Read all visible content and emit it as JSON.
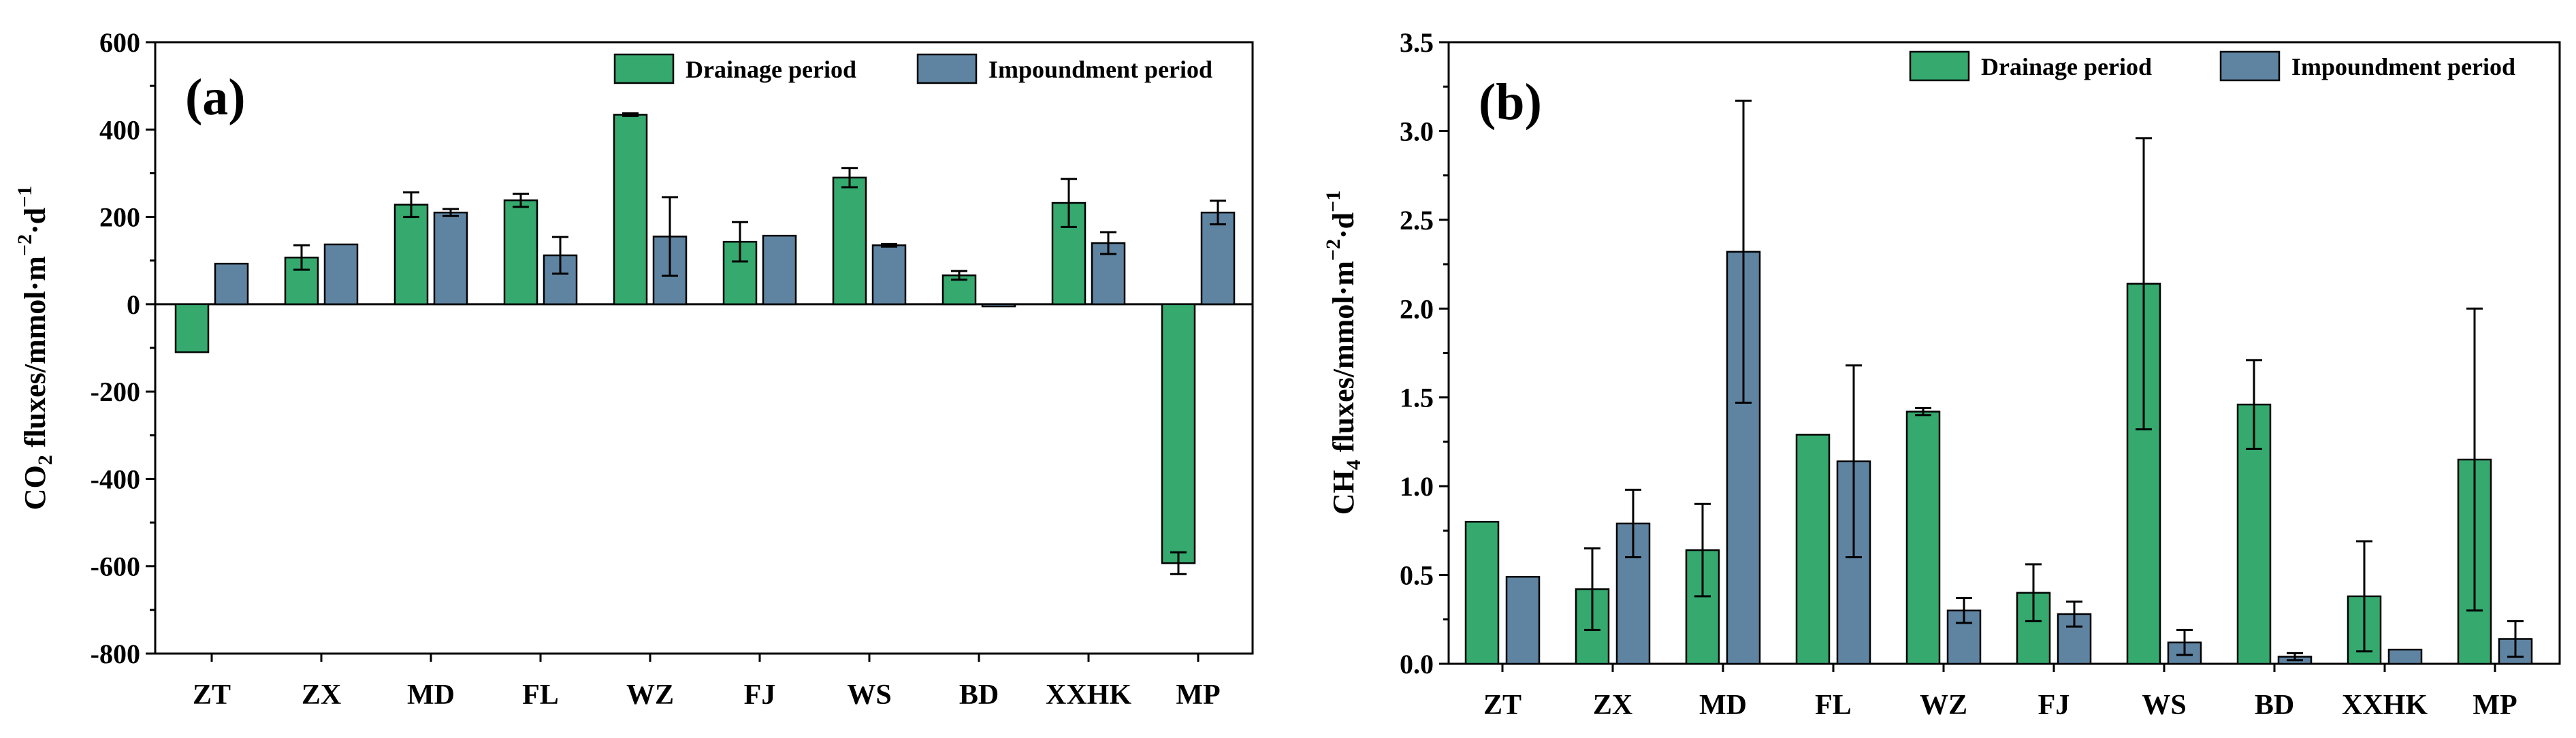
{
  "colors": {
    "drainage": "#35a96e",
    "impoundment": "#5f84a2"
  },
  "chart_data": [
    {
      "type": "bar",
      "panel_label": "(a)",
      "categories": [
        "ZT",
        "ZX",
        "MD",
        "FL",
        "WZ",
        "FJ",
        "WS",
        "BD",
        "XXHK",
        "MP"
      ],
      "ylabel_main": "CO",
      "ylabel_sub": "2",
      "ylabel_rest": " fluxes/mmol·m",
      "ylabel_exp1": "−2",
      "ylabel_mid": "·d",
      "ylabel_exp2": "−1",
      "ylim": [
        -800,
        600
      ],
      "yticks": [
        -800,
        -600,
        -400,
        -200,
        0,
        200,
        400,
        600
      ],
      "legend_position": "top-right",
      "series": [
        {
          "name": "Drainage period",
          "color_key": "drainage",
          "values": [
            -110,
            107,
            228,
            238,
            434,
            143,
            290,
            66,
            232,
            -593
          ],
          "errors": [
            0,
            28,
            28,
            15,
            3,
            45,
            22,
            10,
            55,
            25
          ]
        },
        {
          "name": "Impoundment period",
          "color_key": "impoundment",
          "values": [
            93,
            137,
            210,
            112,
            155,
            157,
            135,
            -5,
            140,
            210
          ],
          "errors": [
            0,
            0,
            8,
            42,
            90,
            0,
            3,
            0,
            25,
            27
          ]
        }
      ]
    },
    {
      "type": "bar",
      "panel_label": "(b)",
      "categories": [
        "ZT",
        "ZX",
        "MD",
        "FL",
        "WZ",
        "FJ",
        "WS",
        "BD",
        "XXHK",
        "MP"
      ],
      "ylabel_main": "CH",
      "ylabel_sub": "4",
      "ylabel_rest": " fluxes/mmol·m",
      "ylabel_exp1": "−2",
      "ylabel_mid": "·d",
      "ylabel_exp2": "−1",
      "ylim": [
        0,
        3.5
      ],
      "yticks": [
        "0.0",
        "0.5",
        "1.0",
        "1.5",
        "2.0",
        "2.5",
        "3.0",
        "3.5"
      ],
      "legend_position": "top-right",
      "series": [
        {
          "name": "Drainage period",
          "color_key": "drainage",
          "values": [
            0.8,
            0.42,
            0.64,
            1.29,
            1.42,
            0.4,
            2.14,
            1.46,
            0.38,
            1.15
          ],
          "errors": [
            0,
            0.23,
            0.26,
            0,
            0.02,
            0.16,
            0.82,
            0.25,
            0.31,
            0.85
          ]
        },
        {
          "name": "Impoundment period",
          "color_key": "impoundment",
          "values": [
            0.49,
            0.79,
            2.32,
            1.14,
            0.3,
            0.28,
            0.12,
            0.04,
            0.08,
            0.14
          ],
          "errors": [
            0,
            0.19,
            0.85,
            0.54,
            0.07,
            0.07,
            0.07,
            0.02,
            0,
            0.1
          ]
        }
      ]
    }
  ]
}
